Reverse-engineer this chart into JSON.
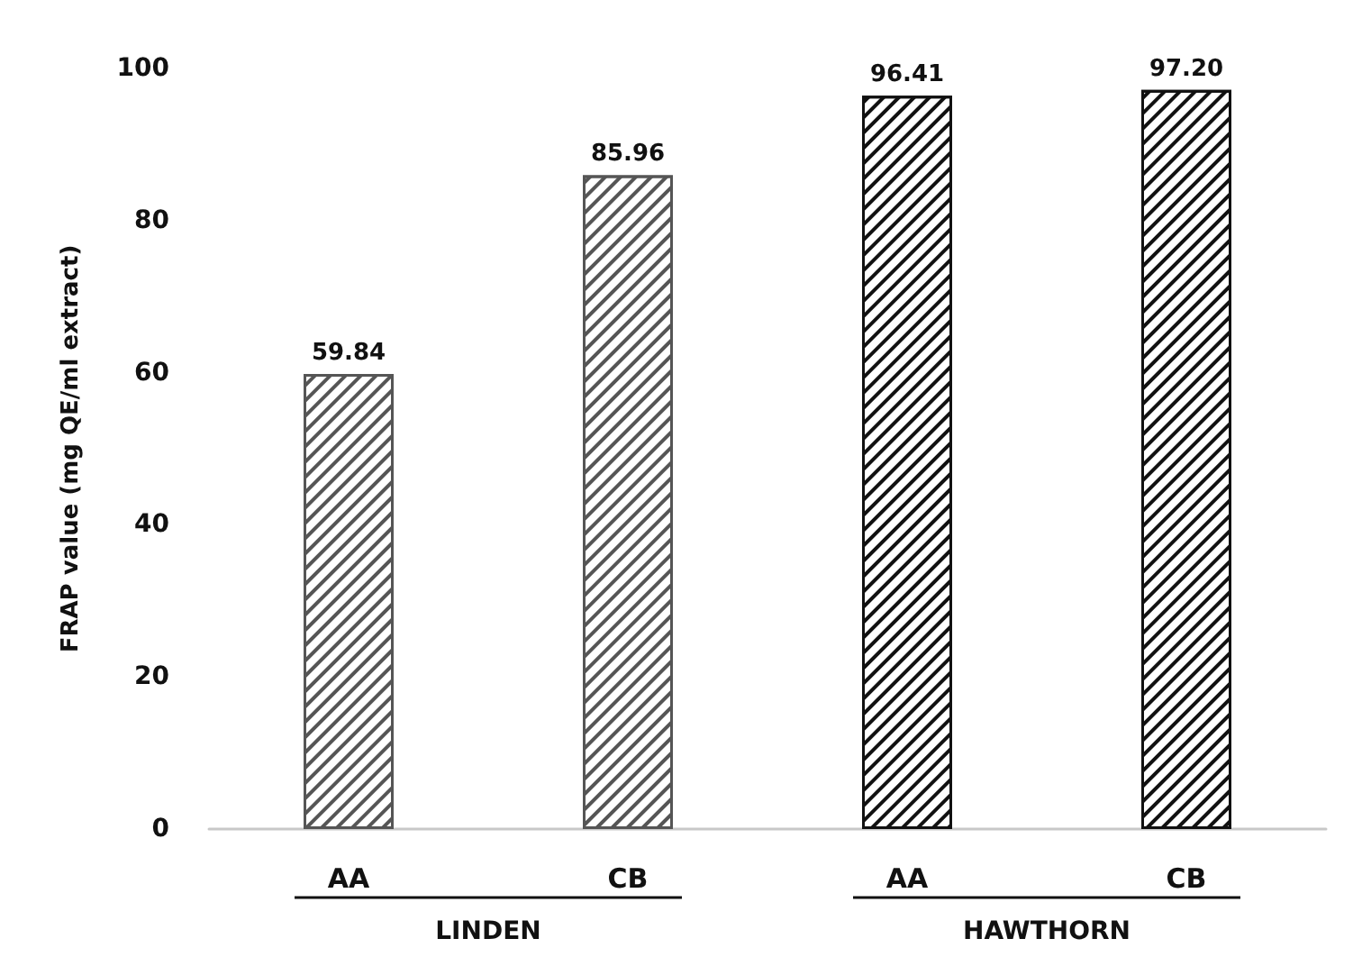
{
  "chart_data": {
    "type": "bar",
    "ylabel": "FRAP value (mg QE/ml extract)",
    "categories": [
      "AA",
      "CB",
      "AA",
      "CB"
    ],
    "values": [
      59.84,
      85.96,
      96.41,
      97.2
    ],
    "colors": [
      "#555555",
      "#555555",
      "#111111",
      "#111111"
    ],
    "ylim": [
      0,
      100
    ],
    "yticks": [
      0,
      20,
      40,
      60,
      80,
      100
    ],
    "value_labels": [
      "59.84",
      "85.96",
      "96.41",
      "97.20"
    ],
    "annotations": [
      "LINDEN",
      "HAWTHORN"
    ]
  }
}
